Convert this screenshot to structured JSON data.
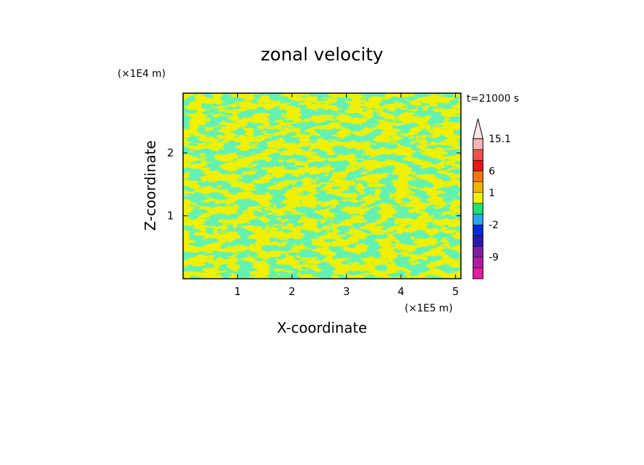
{
  "chart_data": {
    "type": "heatmap",
    "title": "zonal velocity",
    "xlabel": "X-coordinate",
    "ylabel": "Z-coordinate",
    "x_unit": "(×1E5 m)",
    "y_unit": "(×1E4 m)",
    "time_label": "t=21000 s",
    "xlim": [
      0,
      5.1
    ],
    "ylim": [
      0,
      2.95
    ],
    "xticks": [
      "1",
      "2",
      "3",
      "4",
      "5"
    ],
    "yticks": [
      "1",
      "2"
    ],
    "grid": false,
    "legend": {
      "position": "right",
      "levels": [
        {
          "color": "#e61ea0",
          "label": ""
        },
        {
          "color": "#b01a9e",
          "label": "-9"
        },
        {
          "color": "#7a1fa0",
          "label": ""
        },
        {
          "color": "#2b1aa8",
          "label": ""
        },
        {
          "color": "#0a2ad6",
          "label": "-2"
        },
        {
          "color": "#2aa8e8",
          "label": ""
        },
        {
          "color": "#20e070",
          "label": ""
        },
        {
          "color": "#f0f000",
          "label": "1"
        },
        {
          "color": "#f0b400",
          "label": ""
        },
        {
          "color": "#f07814",
          "label": "6"
        },
        {
          "color": "#e01818",
          "label": ""
        },
        {
          "color": "#f05050",
          "label": ""
        },
        {
          "color": "#f5b4b4",
          "label": "15.1"
        },
        {
          "color": "#ffe4e4",
          "label": ""
        }
      ]
    },
    "field_colors": [
      "#20e070",
      "#f0f000"
    ]
  }
}
